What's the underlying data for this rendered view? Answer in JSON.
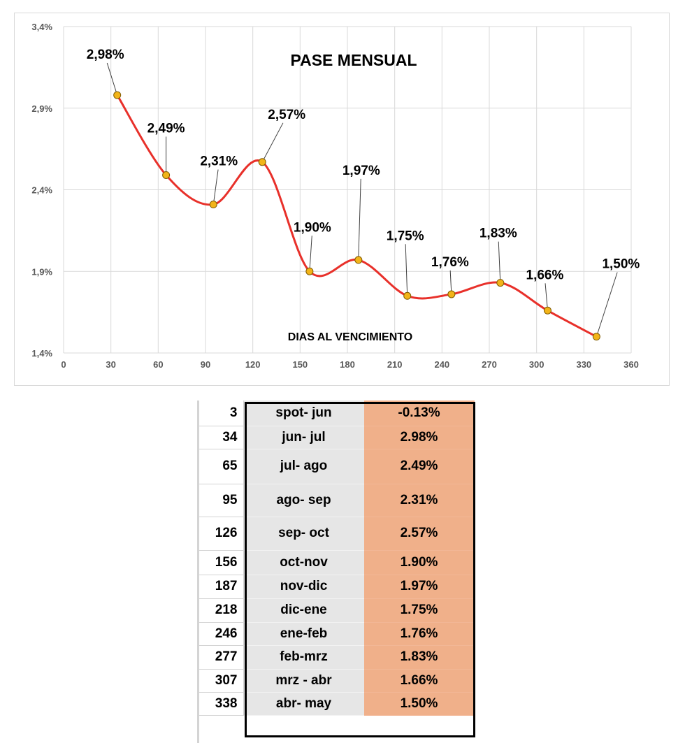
{
  "chart_data": {
    "type": "line",
    "title": "PASE MENSUAL",
    "xlabel": "DIAS AL VENCIMIENTO",
    "ylabel": "",
    "xlim": [
      0,
      360
    ],
    "ylim": [
      1.4,
      3.4
    ],
    "x_ticks": [
      "0",
      "30",
      "60",
      "90",
      "120",
      "150",
      "180",
      "210",
      "240",
      "270",
      "300",
      "330",
      "360"
    ],
    "y_ticks": [
      "1,4%",
      "1,9%",
      "2,4%",
      "2,9%",
      "3,4%"
    ],
    "grid": "vertical and horizontal",
    "line_color": "#e8302a",
    "marker_color": "#f2b419",
    "x": [
      34,
      65,
      95,
      126,
      156,
      187,
      218,
      246,
      277,
      307,
      338
    ],
    "values": [
      2.98,
      2.49,
      2.31,
      2.57,
      1.9,
      1.97,
      1.75,
      1.76,
      1.83,
      1.66,
      1.5
    ],
    "data_labels": [
      "2,98%",
      "2,49%",
      "2,31%",
      "2,57%",
      "1,90%",
      "1,97%",
      "1,75%",
      "1,76%",
      "1,83%",
      "1,66%",
      "1,50%"
    ]
  },
  "table": {
    "rows": [
      {
        "days": "3",
        "pair": "spot- jun",
        "rate": "-0.13%"
      },
      {
        "days": "34",
        "pair": "jun- jul",
        "rate": "2.98%"
      },
      {
        "days": "65",
        "pair": "jul- ago",
        "rate": "2.49%"
      },
      {
        "days": "95",
        "pair": "ago- sep",
        "rate": "2.31%"
      },
      {
        "days": "126",
        "pair": "sep- oct",
        "rate": "2.57%"
      },
      {
        "days": "156",
        "pair": "oct-nov",
        "rate": "1.90%"
      },
      {
        "days": "187",
        "pair": "nov-dic",
        "rate": "1.97%"
      },
      {
        "days": "218",
        "pair": "dic-ene",
        "rate": "1.75%"
      },
      {
        "days": "246",
        "pair": "ene-feb",
        "rate": "1.76%"
      },
      {
        "days": "277",
        "pair": "feb-mrz",
        "rate": "1.83%"
      },
      {
        "days": "307",
        "pair": "mrz - abr",
        "rate": "1.66%"
      },
      {
        "days": "338",
        "pair": "abr- may",
        "rate": "1.50%"
      }
    ],
    "pair_fill": "#e6e6e6",
    "rate_fill": "#f0b08a"
  }
}
